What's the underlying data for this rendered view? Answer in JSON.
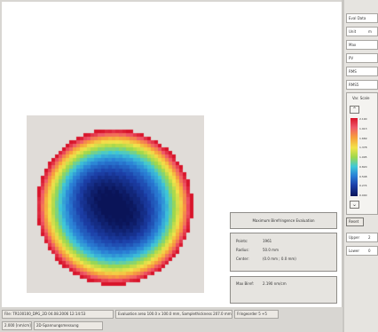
{
  "sidebar": {
    "rows": [
      {
        "label": "Eval Data",
        "value": ""
      },
      {
        "label": "Unit",
        "value": "m"
      },
      {
        "label": "Max",
        "value": ""
      },
      {
        "label": "PV",
        "value": ""
      },
      {
        "label": "RMS",
        "value": ""
      },
      {
        "label": "RMS5",
        "value": ""
      }
    ],
    "scale_title": "Var. Scale",
    "scale_labels": [
      "2.190",
      "1.913",
      "1.669",
      "1.378",
      "1.095",
      "0.820",
      "0.548",
      "0.274",
      "0.000"
    ],
    "reset_label": "Reset",
    "bottom_rows": [
      {
        "label": "Upper",
        "value": "2"
      },
      {
        "label": "Lower",
        "value": "0"
      }
    ]
  },
  "panels": {
    "title": "Maximum Birefringence Evaluation",
    "info": [
      {
        "label": "Points:",
        "value": "1961"
      },
      {
        "label": "Radius:",
        "value": "50.0 mm"
      },
      {
        "label": "Center:",
        "value": "(0.0 mm ; 0.0 mm)"
      }
    ],
    "max_label": "Max Biref:",
    "max_value": "2.190 nm/cm"
  },
  "statusbar": {
    "file": "File: TR100100_DPG_2D   04.08.2006  12:14:53",
    "area": "Evaluation area 100.0 x 100.0 mm, Samplethickness 207.0 mm",
    "fringe": "Fringeorder 5 +5",
    "mode_value": "2.000 [nm/cm]",
    "mode_label": "2D-Spannungsmessung"
  },
  "colors": {
    "scale": [
      "#d8142a",
      "#ef5a6a",
      "#f7a03c",
      "#f2e34a",
      "#9ed84c",
      "#3fc8d8",
      "#2a7fd6",
      "#1c3fa8",
      "#0a1458"
    ],
    "map_background": "#e0dcd8"
  }
}
